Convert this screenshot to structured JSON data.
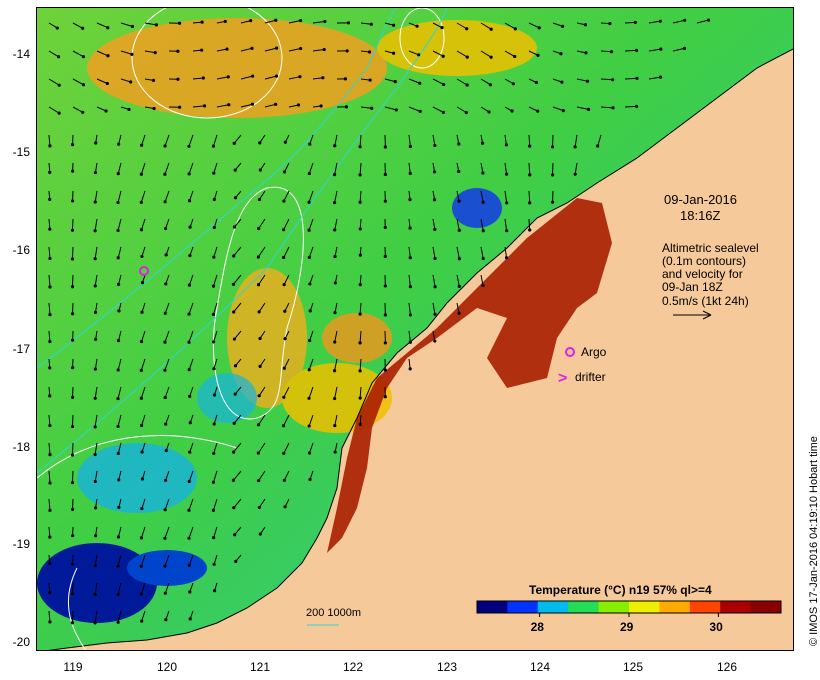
{
  "map": {
    "lon_ticks": [
      "119",
      "120",
      "121",
      "122",
      "123",
      "124",
      "125",
      "126"
    ],
    "lat_ticks": [
      "-14",
      "-15",
      "-16",
      "-17",
      "-18",
      "-19",
      "-20"
    ],
    "lon_range": [
      118.65,
      126.7
    ],
    "lat_range": [
      -20.1,
      -13.45
    ],
    "land_color": "#f6c99a"
  },
  "date_block": {
    "date": "09-Jan-2016",
    "time": "18:16Z"
  },
  "sealevel_block": {
    "line1": "Altimetric sealevel",
    "line2": "(0.1m contours)",
    "line3": "and velocity for",
    "line4": "09-Jan 18Z",
    "line5": "0.5m/s (1kt 24h)"
  },
  "legend": {
    "argo": "Argo",
    "drifter": "drifter",
    "drifter_symbol": ">"
  },
  "isobaths": {
    "label": "200  1000m"
  },
  "colorbar": {
    "title": "Temperature (°C) n19 57% ql>=4",
    "ticks": [
      "28",
      "29",
      "30"
    ],
    "range": [
      27.3,
      30.7
    ],
    "tick_values": [
      28,
      29,
      30
    ],
    "colors": [
      "#00007f",
      "#0033ff",
      "#00bbee",
      "#22dd55",
      "#88ee00",
      "#eeee00",
      "#ffaa00",
      "#ff4400",
      "#aa0000",
      "#880000"
    ]
  },
  "credit": "© IMOS 17-Jan-2016 04:19:10 Hobart time"
}
